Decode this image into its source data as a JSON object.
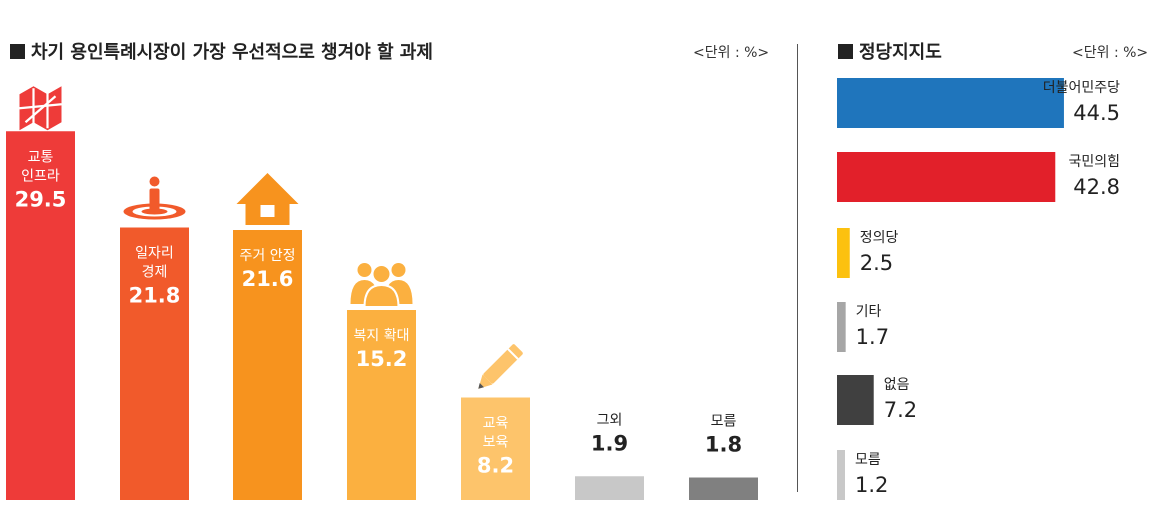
{
  "left": {
    "title": "차기 용인특례시장이 가장 우선적으로 챙겨야 할 과제",
    "unit": "<단위 : %>"
  },
  "right": {
    "title": "정당지지도",
    "unit": "<단위 : %>"
  },
  "chart_data": [
    {
      "type": "bar",
      "orientation": "vertical",
      "title": "차기 용인특례시장이 가장 우선적으로 챙겨야 할 과제",
      "unit": "<단위 : %>",
      "categories": [
        "교통 인프라",
        "일자리 경제",
        "주거 안정",
        "복지 확대",
        "교육 보육",
        "그외",
        "모름"
      ],
      "category_lines": [
        [
          "교통",
          "인프라"
        ],
        [
          "일자리",
          "경제"
        ],
        [
          "주거 안정"
        ],
        [
          "복지 확대"
        ],
        [
          "교육",
          "보육"
        ],
        [
          "그외"
        ],
        [
          "모름"
        ]
      ],
      "values": [
        29.5,
        21.8,
        21.6,
        15.2,
        8.2,
        1.9,
        1.8
      ],
      "colors": [
        "#ee3b39",
        "#f15a2b",
        "#f7931e",
        "#fbb040",
        "#fdc46b",
        "#c8c8c8",
        "#808080"
      ],
      "icons": [
        "map-icon",
        "job-pin-icon",
        "house-icon",
        "people-icon",
        "pencil-icon",
        "",
        ""
      ]
    },
    {
      "type": "bar",
      "orientation": "horizontal",
      "title": "정당지지도",
      "unit": "<단위 : %>",
      "categories": [
        "더불어민주당",
        "국민의힘",
        "정의당",
        "기타",
        "없음",
        "모름"
      ],
      "values": [
        44.5,
        42.8,
        2.5,
        1.7,
        7.2,
        1.2
      ],
      "colors": [
        "#1f75bc",
        "#e2202a",
        "#fcc10f",
        "#a6a6a6",
        "#404040",
        "#c8c8c8"
      ]
    }
  ]
}
